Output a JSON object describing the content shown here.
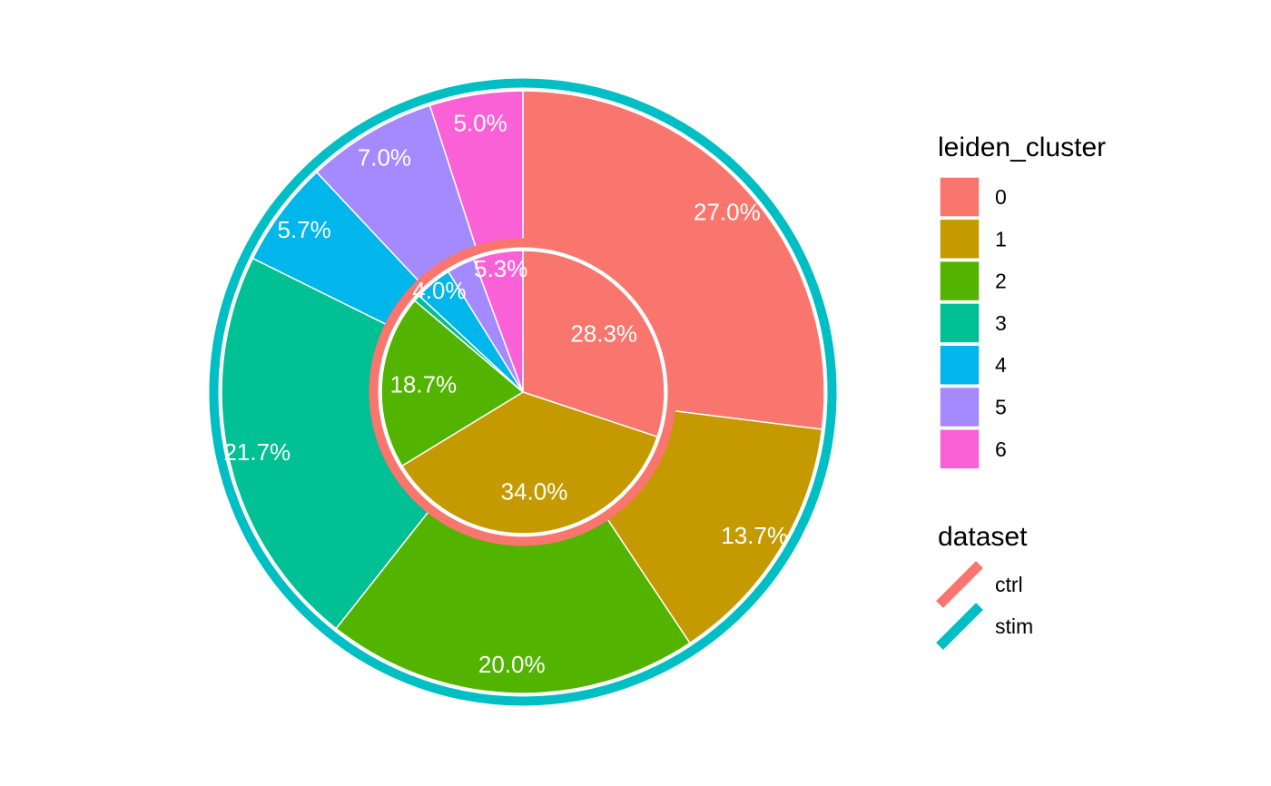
{
  "chart_data": {
    "type": "pie",
    "subtype": "nested-donut",
    "categories": [
      "0",
      "1",
      "2",
      "3",
      "4",
      "5",
      "6"
    ],
    "colors": [
      "#F8766D",
      "#C49A00",
      "#53B400",
      "#00C094",
      "#00B6EB",
      "#A58AFF",
      "#FB61D7"
    ],
    "series": [
      {
        "name": "ctrl",
        "ring": "inner",
        "ring_color": "#F8766D",
        "values": [
          28.3,
          34.0,
          18.7,
          0.7,
          4.0,
          3.0,
          5.3
        ],
        "labels": [
          "28.3%",
          "34.0%",
          "18.7%",
          "",
          "4.0%",
          "",
          "5.3%"
        ]
      },
      {
        "name": "stim",
        "ring": "outer",
        "ring_color": "#00BFC4",
        "values": [
          27.0,
          13.7,
          20.0,
          21.7,
          5.7,
          7.0,
          5.0
        ],
        "labels": [
          "27.0%",
          "13.7%",
          "20.0%",
          "21.7%",
          "5.7%",
          "7.0%",
          "5.0%"
        ]
      }
    ],
    "legend": {
      "fill_title": "leiden_cluster",
      "fill_items": [
        "0",
        "1",
        "2",
        "3",
        "4",
        "5",
        "6"
      ],
      "color_title": "dataset",
      "color_items": [
        "ctrl",
        "stim"
      ],
      "placement": "right"
    }
  }
}
